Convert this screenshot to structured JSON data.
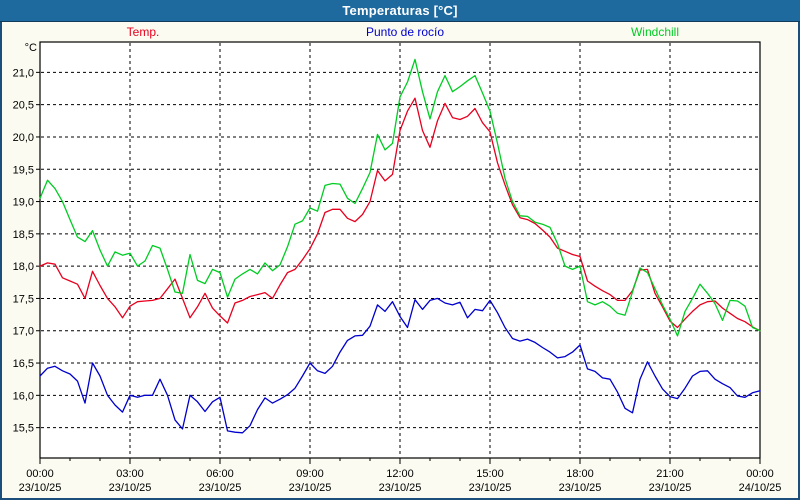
{
  "window": {
    "title": "Temperaturas [°C]"
  },
  "colors": {
    "titlebar_bg": "#1e6a9f",
    "titlebar_text": "#ffffff",
    "frame_border": "#1c4e7c",
    "page_bg": "#fbfbf2",
    "plot_bg": "#ffffff",
    "axis": "#000000",
    "grid": "#000000"
  },
  "chart_data": {
    "type": "line",
    "title": "Temperaturas [°C]",
    "ylabel": "°C",
    "ylim": [
      15.03,
      21.47
    ],
    "grid": {
      "y_interval": 0.5,
      "x_interval_hours": 3,
      "style": "dashed"
    },
    "legend_position": "top",
    "x_range_minutes": [
      0,
      1440
    ],
    "x_step_minutes": 15,
    "y_ticks": [
      {
        "value": 21.0,
        "label": "21,0"
      },
      {
        "value": 20.5,
        "label": "20,5"
      },
      {
        "value": 20.0,
        "label": "20,0"
      },
      {
        "value": 19.5,
        "label": "19,5"
      },
      {
        "value": 19.0,
        "label": "19,0"
      },
      {
        "value": 18.5,
        "label": "18,5"
      },
      {
        "value": 18.0,
        "label": "18,0"
      },
      {
        "value": 17.5,
        "label": "17,5"
      },
      {
        "value": 17.0,
        "label": "17,0"
      },
      {
        "value": 16.5,
        "label": "16,5"
      },
      {
        "value": 16.0,
        "label": "16,0"
      },
      {
        "value": 15.5,
        "label": "15,5"
      }
    ],
    "x_ticks": [
      {
        "hour": 0,
        "time": "00:00",
        "date": "23/10/25"
      },
      {
        "hour": 3,
        "time": "03:00",
        "date": "23/10/25"
      },
      {
        "hour": 6,
        "time": "06:00",
        "date": "23/10/25"
      },
      {
        "hour": 9,
        "time": "09:00",
        "date": "23/10/25"
      },
      {
        "hour": 12,
        "time": "12:00",
        "date": "23/10/25"
      },
      {
        "hour": 15,
        "time": "15:00",
        "date": "23/10/25"
      },
      {
        "hour": 18,
        "time": "18:00",
        "date": "23/10/25"
      },
      {
        "hour": 21,
        "time": "21:00",
        "date": "23/10/25"
      },
      {
        "hour": 24,
        "time": "00:00",
        "date": "24/10/25"
      }
    ],
    "series": [
      {
        "name": "Temp.",
        "color": "#e8001f",
        "values": [
          18.0,
          18.05,
          18.03,
          17.82,
          17.77,
          17.72,
          17.5,
          17.92,
          17.7,
          17.5,
          17.37,
          17.2,
          17.38,
          17.45,
          17.46,
          17.47,
          17.5,
          17.65,
          17.8,
          17.5,
          17.2,
          17.37,
          17.58,
          17.35,
          17.23,
          17.12,
          17.43,
          17.47,
          17.53,
          17.56,
          17.59,
          17.5,
          17.71,
          17.9,
          17.95,
          18.1,
          18.27,
          18.5,
          18.83,
          18.88,
          18.88,
          18.74,
          18.69,
          18.8,
          19.0,
          19.48,
          19.32,
          19.42,
          20.1,
          20.4,
          20.6,
          20.1,
          19.84,
          20.25,
          20.52,
          20.3,
          20.27,
          20.32,
          20.44,
          20.22,
          20.08,
          19.6,
          19.26,
          18.95,
          18.75,
          18.72,
          18.66,
          18.56,
          18.45,
          18.28,
          18.23,
          18.18,
          18.15,
          17.77,
          17.69,
          17.62,
          17.56,
          17.47,
          17.47,
          17.62,
          17.94,
          17.95,
          17.58,
          17.37,
          17.15,
          17.05,
          17.18,
          17.3,
          17.4,
          17.45,
          17.46,
          17.35,
          17.27,
          17.19,
          17.14,
          17.06,
          17.0
        ]
      },
      {
        "name": "Punto de rocío",
        "color": "#0000cc",
        "values": [
          16.3,
          16.42,
          16.45,
          16.38,
          16.33,
          16.22,
          15.88,
          16.5,
          16.3,
          16.0,
          15.85,
          15.74,
          16.0,
          15.97,
          16.0,
          16.0,
          16.25,
          16.0,
          15.62,
          15.48,
          16.0,
          15.9,
          15.75,
          15.9,
          15.97,
          15.45,
          15.43,
          15.42,
          15.53,
          15.78,
          15.96,
          15.88,
          15.94,
          16.01,
          16.11,
          16.3,
          16.5,
          16.38,
          16.34,
          16.45,
          16.67,
          16.85,
          16.92,
          16.93,
          17.07,
          17.4,
          17.3,
          17.45,
          17.22,
          17.05,
          17.48,
          17.33,
          17.47,
          17.5,
          17.43,
          17.4,
          17.44,
          17.2,
          17.33,
          17.31,
          17.47,
          17.28,
          17.05,
          16.88,
          16.84,
          16.87,
          16.82,
          16.74,
          16.67,
          16.58,
          16.6,
          16.67,
          16.78,
          16.41,
          16.37,
          16.27,
          16.25,
          16.05,
          15.8,
          15.73,
          16.25,
          16.52,
          16.3,
          16.1,
          15.98,
          15.95,
          16.11,
          16.3,
          16.37,
          16.38,
          16.25,
          16.18,
          16.12,
          15.99,
          15.97,
          16.04,
          16.07
        ]
      },
      {
        "name": "Windchill",
        "color": "#00cc22",
        "values": [
          19.05,
          19.33,
          19.2,
          19.0,
          18.72,
          18.45,
          18.38,
          18.55,
          18.25,
          18.0,
          18.22,
          18.17,
          18.2,
          18.0,
          18.08,
          18.32,
          18.28,
          17.95,
          17.6,
          17.58,
          18.18,
          17.78,
          17.73,
          17.95,
          17.9,
          17.52,
          17.8,
          17.88,
          17.95,
          17.88,
          18.05,
          17.93,
          18.02,
          18.3,
          18.65,
          18.7,
          18.9,
          18.85,
          19.25,
          19.28,
          19.27,
          19.05,
          18.97,
          19.2,
          19.45,
          20.04,
          19.8,
          19.9,
          20.62,
          20.85,
          21.2,
          20.7,
          20.28,
          20.7,
          20.95,
          20.7,
          20.78,
          20.87,
          20.95,
          20.68,
          20.4,
          19.9,
          19.36,
          19.0,
          18.78,
          18.77,
          18.68,
          18.65,
          18.6,
          18.35,
          18.0,
          17.95,
          18.0,
          17.45,
          17.4,
          17.45,
          17.38,
          17.27,
          17.24,
          17.6,
          17.97,
          17.9,
          17.65,
          17.4,
          17.18,
          16.92,
          17.3,
          17.5,
          17.72,
          17.58,
          17.42,
          17.16,
          17.47,
          17.46,
          17.38,
          17.05,
          17.0
        ]
      }
    ]
  }
}
